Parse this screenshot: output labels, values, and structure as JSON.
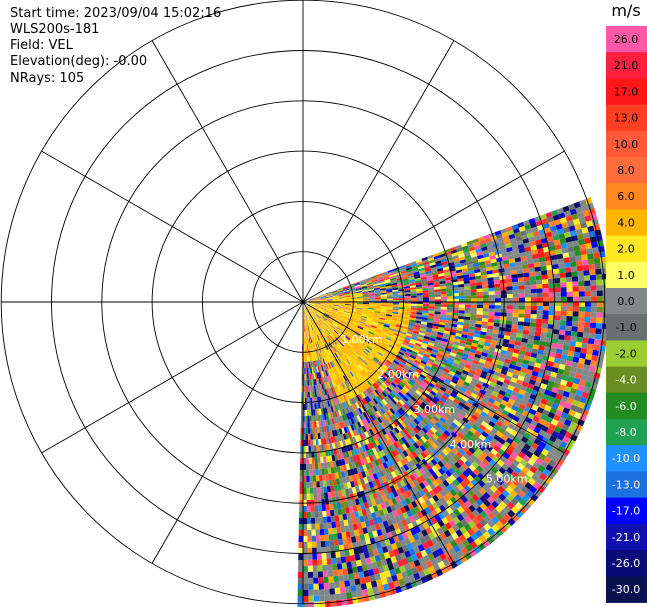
{
  "header": {
    "start_time": "Start time: 2023/09/04 15:02:16",
    "instrument": "WLS200s-181",
    "field": "Field: VEL",
    "elevation": "Elevation(deg): -0.00",
    "nrays": "NRays: 105"
  },
  "chart_data": {
    "type": "heatmap",
    "projection": "polar-ppi",
    "field": "VEL",
    "units": "m/s",
    "range_rings_km": [
      1,
      2,
      3,
      4,
      5,
      6
    ],
    "ring_labels": [
      "1.00km",
      "2.00km",
      "3.00km",
      "4.00km",
      "5.00km"
    ],
    "spoke_step_deg": 30,
    "sector_azimuth_deg": [
      70,
      180
    ],
    "max_range_km": 6.0,
    "colorbar": {
      "title": "m/s",
      "ticks": [
        "26.0",
        "21.0",
        "17.0",
        "13.0",
        "10.0",
        "8.0",
        "6.0",
        "4.0",
        "2.0",
        "1.0",
        "0.0",
        "-1.0",
        "-2.0",
        "-4.0",
        "-6.0",
        "-8.0",
        "-10.0",
        "-13.0",
        "-17.0",
        "-21.0",
        "-26.0",
        "-30.0"
      ],
      "colors": [
        "#ff58a8",
        "#ff2040",
        "#ff1818",
        "#ff3f21",
        "#ff5a38",
        "#ff6d3c",
        "#ff8820",
        "#ffb400",
        "#ffe820",
        "#ffff66",
        "#808888",
        "#6a7072",
        "#9acd32",
        "#6b8e23",
        "#228b22",
        "#20a050",
        "#1e90ff",
        "#1c70e0",
        "#0000ff",
        "#1010b0",
        "#0a0a78",
        "#0a1050"
      ]
    }
  }
}
